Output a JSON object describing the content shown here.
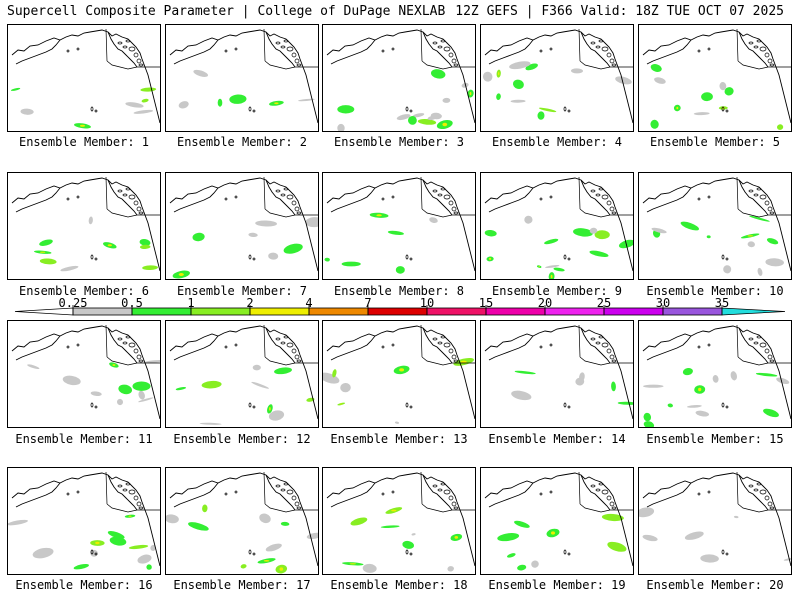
{
  "header": {
    "left": "Supercell Composite Parameter | College of DuPage NEXLAB",
    "right": "12Z GEFS | F366 Valid: 18Z TUE OCT 07 2025"
  },
  "member_prefix": "Ensemble Member:",
  "members": [
    {
      "label": "Ensemble Member: 1",
      "number": 1
    },
    {
      "label": "Ensemble Member: 2",
      "number": 2
    },
    {
      "label": "Ensemble Member: 3",
      "number": 3
    },
    {
      "label": "Ensemble Member: 4",
      "number": 4
    },
    {
      "label": "Ensemble Member: 5",
      "number": 5
    },
    {
      "label": "Ensemble Member: 6",
      "number": 6
    },
    {
      "label": "Ensemble Member: 7",
      "number": 7
    },
    {
      "label": "Ensemble Member: 8",
      "number": 8
    },
    {
      "label": "Ensemble Member: 9",
      "number": 9
    },
    {
      "label": "Ensemble Member: 10",
      "number": 10
    },
    {
      "label": "Ensemble Member: 11",
      "number": 11
    },
    {
      "label": "Ensemble Member: 12",
      "number": 12
    },
    {
      "label": "Ensemble Member: 13",
      "number": 13
    },
    {
      "label": "Ensemble Member: 14",
      "number": 14
    },
    {
      "label": "Ensemble Member: 15",
      "number": 15
    },
    {
      "label": "Ensemble Member: 16",
      "number": 16
    },
    {
      "label": "Ensemble Member: 17",
      "number": 17
    },
    {
      "label": "Ensemble Member: 18",
      "number": 18
    },
    {
      "label": "Ensemble Member: 19",
      "number": 19
    },
    {
      "label": "Ensemble Member: 20",
      "number": 20
    }
  ],
  "colorbar": {
    "ticks": [
      "0.25",
      "0.5",
      "1",
      "2",
      "4",
      "7",
      "10",
      "15",
      "20",
      "25",
      "30",
      "35"
    ],
    "colors": [
      "#c8c8c8",
      "#33ee33",
      "#88ee22",
      "#eeee00",
      "#ee8800",
      "#dd0000",
      "#ee1166",
      "#ee00aa",
      "#ee22ee",
      "#cc00ee",
      "#9955dd",
      "#22dddd"
    ]
  },
  "palette": {
    "gray": "#c8c8c8",
    "green": "#33ee33",
    "lime": "#88ee22",
    "yellow": "#eeee00",
    "orange": "#ee8800",
    "coast": "#000000",
    "border": "#000000"
  }
}
